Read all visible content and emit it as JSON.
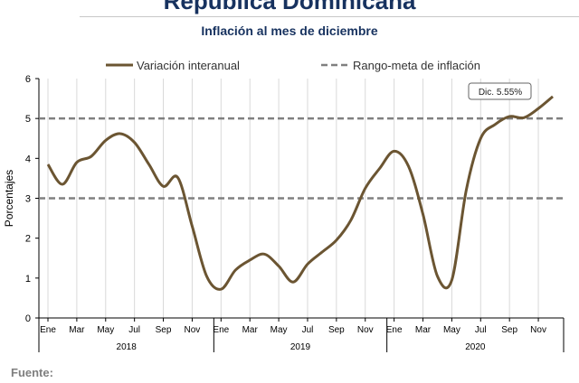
{
  "header": {
    "title": "República Dominicana",
    "subtitle": "Inflación al mes de diciembre"
  },
  "footer": {
    "source_label": "Fuente:"
  },
  "chart_data": {
    "type": "line",
    "ylabel": "Porcentajes",
    "ylim": [
      0,
      6
    ],
    "yticks": [
      0,
      1,
      2,
      3,
      4,
      5,
      6
    ],
    "grid": "vertical",
    "legend_position": "top",
    "month_ticks": [
      "Ene",
      "Mar",
      "May",
      "Jul",
      "Sep",
      "Nov",
      "Ene",
      "Mar",
      "May",
      "Jul",
      "Sep",
      "Nov",
      "Ene",
      "Mar",
      "May",
      "Jul",
      "Sep",
      "Nov"
    ],
    "years": [
      "2018",
      "2019",
      "2020"
    ],
    "series": [
      {
        "name": "Variación interanual",
        "color": "#6b5532",
        "style": "solid",
        "values": [
          3.85,
          3.35,
          3.9,
          4.05,
          4.45,
          4.62,
          4.4,
          3.85,
          3.3,
          3.52,
          2.3,
          1.05,
          0.72,
          1.2,
          1.45,
          1.6,
          1.3,
          0.9,
          1.35,
          1.65,
          1.95,
          2.45,
          3.25,
          3.75,
          4.18,
          3.8,
          2.6,
          1.05,
          0.95,
          3.2,
          4.5,
          4.85,
          5.05,
          5.02,
          5.25,
          5.55
        ]
      },
      {
        "name": "Rango-meta de inflación",
        "color": "#808080",
        "style": "dashed",
        "bounds": [
          3,
          5
        ]
      }
    ],
    "annotation": {
      "text": "Dic. 5.55%"
    }
  }
}
